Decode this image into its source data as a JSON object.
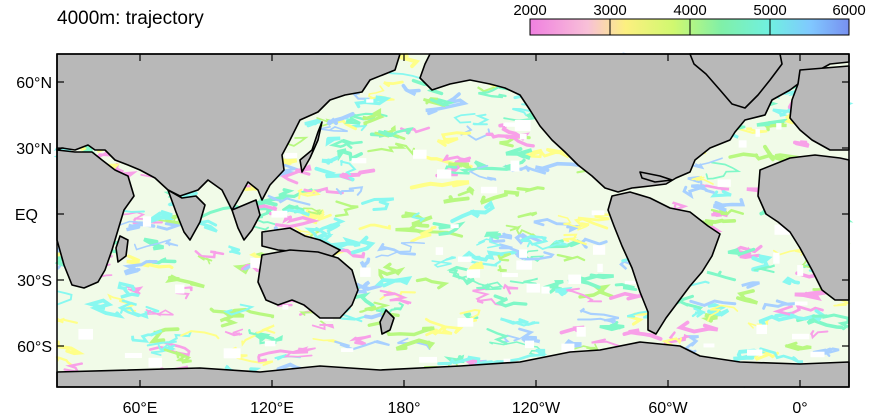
{
  "title": "4000m: trajectory",
  "colorbar": {
    "labels": [
      "2000",
      "3000",
      "4000",
      "5000",
      "6000"
    ],
    "stops": [
      "#f08ae0",
      "#f4b8d0",
      "#fcf07a",
      "#c8f870",
      "#78f0a0",
      "#70f0e0",
      "#70c0ff",
      "#7890f0"
    ]
  },
  "axes": {
    "lat_labels": [
      "60°N",
      "30°N",
      "EQ",
      "30°S",
      "60°S"
    ],
    "lon_labels": [
      "60°E",
      "120°E",
      "180°",
      "120°W",
      "60°W",
      "0°"
    ]
  },
  "colors": {
    "land": "#b8b8b8",
    "ocean_gap": "#ffffff",
    "coast": "#000000",
    "trajectory": [
      "#f8a0e8",
      "#ffff88",
      "#b8f880",
      "#80f8c8",
      "#88f8f0",
      "#a8d0ff"
    ]
  }
}
